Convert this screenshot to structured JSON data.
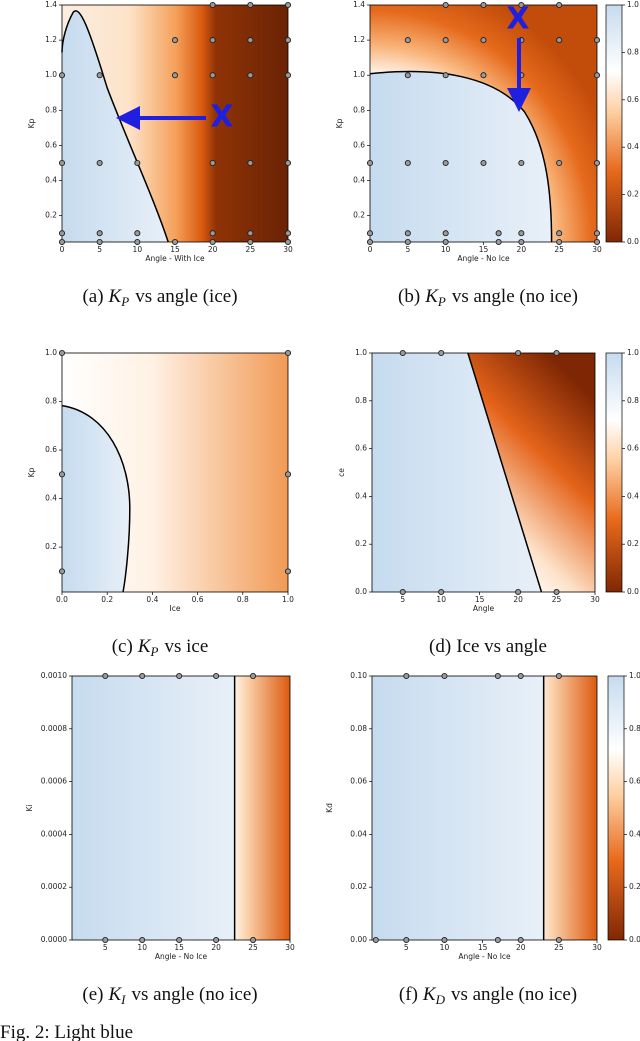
{
  "panels": [
    {
      "xlabel": "Angle - With Ice",
      "ylabel": "Kp",
      "xlim": [
        0,
        30
      ],
      "ylim": [
        0.05,
        1.4
      ],
      "xticks": [
        0,
        5,
        10,
        15,
        20,
        25,
        30
      ],
      "yticks": [
        0.2,
        0.4,
        0.6,
        0.8,
        {
          "value": 1,
          "label": "1.0"
        },
        1.2,
        1.4
      ],
      "annotation": "X",
      "points": [
        [
          0,
          0.05
        ],
        [
          5,
          0.05
        ],
        [
          10,
          0.05
        ],
        [
          15,
          0.05
        ],
        [
          20,
          0.05
        ],
        [
          25,
          0.05
        ],
        [
          30,
          0.05
        ],
        [
          0,
          0.1
        ],
        [
          5,
          0.1
        ],
        [
          10,
          0.1
        ],
        [
          20,
          0.1
        ],
        [
          25,
          0.1
        ],
        [
          30,
          0.1
        ],
        [
          0,
          0.5
        ],
        [
          5,
          0.5
        ],
        [
          10,
          0.5
        ],
        [
          20,
          0.5
        ],
        [
          25,
          0.5
        ],
        [
          30,
          0.5
        ],
        [
          0,
          1
        ],
        [
          5,
          1
        ],
        [
          15,
          1
        ],
        [
          20,
          1
        ],
        [
          25,
          1
        ],
        [
          30,
          1
        ],
        [
          15,
          1.2
        ],
        [
          20,
          1.2
        ],
        [
          25,
          1.2
        ],
        [
          30,
          1.2
        ],
        [
          20,
          1.4
        ],
        [
          25,
          1.4
        ],
        [
          30,
          1.4
        ]
      ],
      "caption": {
        "label": "(a)",
        "var": "K",
        "sub": "P",
        "text": "vs angle (ice)"
      }
    },
    {
      "xlabel": "Angle - No Ice",
      "ylabel": "Kp",
      "xlim": [
        0,
        30
      ],
      "ylim": [
        0.05,
        1.4
      ],
      "xticks": [
        0,
        5,
        10,
        15,
        20,
        25,
        30
      ],
      "yticks": [
        0.2,
        0.4,
        0.6,
        0.8,
        {
          "value": 1,
          "label": "1.0"
        },
        1.2,
        1.4
      ],
      "annotation": "X",
      "points": [
        [
          0,
          0.05
        ],
        [
          5,
          0.05
        ],
        [
          10,
          0.05
        ],
        [
          17,
          0.05
        ],
        [
          20,
          0.05
        ],
        [
          25,
          0.05
        ],
        [
          30,
          0.05
        ],
        [
          0,
          0.1
        ],
        [
          5,
          0.1
        ],
        [
          10,
          0.1
        ],
        [
          17,
          0.1
        ],
        [
          20,
          0.1
        ],
        [
          25,
          0.1
        ],
        [
          30,
          0.1
        ],
        [
          0,
          0.5
        ],
        [
          5,
          0.5
        ],
        [
          10,
          0.5
        ],
        [
          15,
          0.5
        ],
        [
          20,
          0.5
        ],
        [
          25,
          0.5
        ],
        [
          30,
          0.5
        ],
        [
          5,
          1
        ],
        [
          10,
          1
        ],
        [
          15,
          1
        ],
        [
          20,
          1
        ],
        [
          30,
          1
        ],
        [
          5,
          1.2
        ],
        [
          10,
          1.2
        ],
        [
          15,
          1.2
        ],
        [
          20,
          1.2
        ],
        [
          25,
          1.2
        ],
        [
          30,
          1.2
        ],
        [
          10,
          1.4
        ],
        [
          15,
          1.4
        ],
        [
          20,
          1.4
        ],
        [
          25,
          1.4
        ]
      ],
      "colorbar": {
        "lim": [
          0,
          1
        ],
        "ticks": [
          {
            "value": 0,
            "label": "0.0"
          },
          0.2,
          0.4,
          0.6,
          0.8,
          {
            "value": 1,
            "label": "1.0"
          }
        ]
      },
      "caption": {
        "label": "(b)",
        "var": "K",
        "sub": "P",
        "text": "vs angle (no ice)"
      }
    },
    {
      "xlabel": "Ice",
      "ylabel": "Kp",
      "xlim": [
        0,
        1
      ],
      "ylim": [
        0.015,
        1
      ],
      "xticks": [
        {
          "value": 0,
          "label": "0.0"
        },
        0.2,
        0.4,
        0.6,
        0.8,
        {
          "value": 1,
          "label": "1.0"
        }
      ],
      "yticks": [
        0.2,
        0.4,
        0.6,
        0.8,
        {
          "value": 1,
          "label": "1.0"
        }
      ],
      "points": [
        [
          0,
          0.1
        ],
        [
          0,
          0.5
        ],
        [
          0,
          1
        ],
        [
          1,
          0.1
        ],
        [
          1,
          0.5
        ],
        [
          1,
          1
        ]
      ],
      "caption": {
        "label": "(c)",
        "var": "K",
        "sub": "P",
        "text": "vs ice"
      }
    },
    {
      "xlabel": "Angle",
      "ylabel": "ce",
      "xlim": [
        1,
        30
      ],
      "ylim": [
        0,
        1
      ],
      "xticks": [
        5,
        10,
        15,
        20,
        25,
        30
      ],
      "yticks": [
        {
          "value": 0,
          "label": "0.0"
        },
        0.2,
        0.4,
        0.6,
        0.8,
        {
          "value": 1,
          "label": "1.0"
        }
      ],
      "points": [
        [
          5,
          1
        ],
        [
          10,
          1
        ],
        [
          20,
          1
        ],
        [
          25,
          1
        ],
        [
          5,
          0
        ],
        [
          10,
          0
        ],
        [
          20,
          0
        ],
        [
          25,
          0
        ]
      ],
      "colorbar": {
        "lim": [
          0,
          1
        ],
        "ticks": [
          {
            "value": 0,
            "label": "0.0"
          },
          0.2,
          0.4,
          0.6,
          0.8,
          {
            "value": 1,
            "label": "1.0"
          }
        ]
      },
      "caption": {
        "label": "(d)",
        "text": "Ice vs angle"
      }
    },
    {
      "xlabel": "Angle - No Ice",
      "ylabel": "Ki",
      "xlim": [
        0.5,
        30
      ],
      "ylim": [
        0,
        0.001
      ],
      "xticks": [
        5,
        10,
        15,
        20,
        25,
        30
      ],
      "yticks": [
        {
          "value": 0,
          "label": "0.0000"
        },
        {
          "value": 0.0002,
          "label": "0.0002"
        },
        {
          "value": 0.0004,
          "label": "0.0004"
        },
        {
          "value": 0.0006,
          "label": "0.0006"
        },
        {
          "value": 0.0008,
          "label": "0.0008"
        },
        {
          "value": 0.001,
          "label": "0.0010"
        }
      ],
      "points": [
        [
          5,
          0.001
        ],
        [
          10,
          0.001
        ],
        [
          15,
          0.001
        ],
        [
          20,
          0.001
        ],
        [
          25,
          0.001
        ],
        [
          5,
          0
        ],
        [
          10,
          0
        ],
        [
          15,
          0
        ],
        [
          20,
          0
        ],
        [
          25,
          0
        ]
      ],
      "caption": {
        "label": "(e)",
        "var": "K",
        "sub": "I",
        "text": "vs angle (no ice)"
      }
    },
    {
      "xlabel": "Angle - No Ice",
      "ylabel": "Kd",
      "xlim": [
        0.5,
        30
      ],
      "ylim": [
        0,
        0.1
      ],
      "xticks": [
        5,
        10,
        15,
        20,
        25,
        30
      ],
      "yticks": [
        {
          "value": 0,
          "label": "0.00"
        },
        0.02,
        0.04,
        0.06,
        0.08,
        {
          "value": 0.1,
          "label": "0.10"
        }
      ],
      "points": [
        [
          5,
          0.1
        ],
        [
          10,
          0.1
        ],
        [
          17,
          0.1
        ],
        [
          20,
          0.1
        ],
        [
          25,
          0.1
        ],
        [
          1,
          0
        ],
        [
          5,
          0
        ],
        [
          10,
          0
        ],
        [
          17,
          0
        ],
        [
          20,
          0
        ],
        [
          25,
          0
        ]
      ],
      "colorbar": {
        "lim": [
          0,
          1
        ],
        "ticks": [
          {
            "value": 0,
            "label": "0.0"
          },
          0.2,
          0.4,
          0.6,
          0.8,
          {
            "value": 1,
            "label": "1.0"
          }
        ]
      },
      "caption": {
        "label": "(f)",
        "var": "K",
        "sub": "D",
        "text": "vs angle (no ice)"
      }
    }
  ],
  "figure_caption": "Fig. 2: Light blue"
}
